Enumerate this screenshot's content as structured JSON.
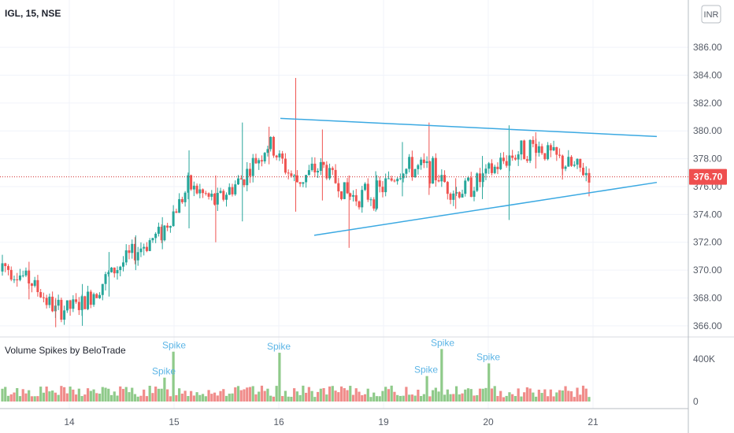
{
  "header": {
    "symbol_label": "IGL, 15, NSE"
  },
  "indicator": {
    "title": "Volume Spikes by BeloTrade",
    "spike_label": "Spike"
  },
  "price_axis": {
    "currency": "INR",
    "ticks": [
      "386.00",
      "384.00",
      "382.00",
      "380.00",
      "378.00",
      "376.00",
      "374.00",
      "372.00",
      "370.00",
      "368.00",
      "366.00"
    ]
  },
  "last_price": {
    "label": "376.70",
    "value": 376.7
  },
  "volume_axis": {
    "ticks": [
      "400K",
      "0"
    ]
  },
  "time_axis": {
    "ticks": [
      "14",
      "15",
      "16",
      "19",
      "20",
      "21"
    ]
  },
  "colors": {
    "up": "#26a69a",
    "down": "#ef5350",
    "up_volume": "#8fca8a",
    "down_volume": "#f08c8a",
    "trendline": "#3ba9e2",
    "price_line": "#d32f2f",
    "spike_text": "#5cb5e6"
  },
  "chart_data": {
    "type": "candlestick",
    "title": "IGL, 15, NSE",
    "xlabel": "",
    "ylabel": "",
    "x_ticks": [
      "14",
      "15",
      "16",
      "19",
      "20",
      "21"
    ],
    "ylim": [
      365.2,
      389.4
    ],
    "candles_approx": [
      {
        "day": "13",
        "open": 369.9,
        "close": 370.9,
        "high": 371.1,
        "low": 369.6
      },
      {
        "day": "13",
        "open": 370.4,
        "close": 368.2,
        "high": 370.6,
        "low": 367.9
      },
      {
        "day": "13",
        "open": 367.8,
        "close": 366.4,
        "high": 368.0,
        "low": 365.9
      },
      {
        "day": "14",
        "open": 366.5,
        "close": 368.5,
        "high": 369.0,
        "low": 366.0
      },
      {
        "day": "14",
        "open": 368.5,
        "close": 370.8,
        "high": 371.3,
        "low": 368.1
      },
      {
        "day": "14",
        "open": 370.8,
        "close": 371.9,
        "high": 372.5,
        "low": 370.0
      },
      {
        "day": "14",
        "open": 372.2,
        "close": 373.4,
        "high": 373.8,
        "low": 371.5
      },
      {
        "day": "15",
        "open": 374.0,
        "close": 378.1,
        "high": 378.6,
        "low": 373.0
      },
      {
        "day": "15",
        "open": 376.5,
        "close": 373.2,
        "high": 376.8,
        "low": 372.0
      },
      {
        "day": "15",
        "open": 373.9,
        "close": 379.3,
        "high": 380.6,
        "low": 373.5
      },
      {
        "day": "15",
        "open": 379.6,
        "close": 378.5,
        "high": 380.3,
        "low": 377.6
      },
      {
        "day": "16",
        "open": 377.0,
        "close": 375.6,
        "high": 383.8,
        "low": 374.2
      },
      {
        "day": "16",
        "open": 378.6,
        "close": 376.4,
        "high": 380.1,
        "low": 375.0
      },
      {
        "day": "16",
        "open": 376.2,
        "close": 374.4,
        "high": 376.8,
        "low": 371.6
      },
      {
        "day": "16",
        "open": 374.6,
        "close": 376.3,
        "high": 377.1,
        "low": 374.2
      },
      {
        "day": "19",
        "open": 376.3,
        "close": 378.2,
        "high": 379.2,
        "low": 375.3
      },
      {
        "day": "19",
        "open": 378.6,
        "close": 376.0,
        "high": 380.6,
        "low": 375.4
      },
      {
        "day": "19",
        "open": 376.2,
        "close": 374.9,
        "high": 376.6,
        "low": 374.4
      },
      {
        "day": "19",
        "open": 375.3,
        "close": 377.8,
        "high": 378.2,
        "low": 375.1
      },
      {
        "day": "20",
        "open": 376.3,
        "close": 380.0,
        "high": 380.4,
        "low": 373.6
      },
      {
        "day": "20",
        "open": 379.8,
        "close": 378.2,
        "high": 379.9,
        "low": 377.3
      },
      {
        "day": "20",
        "open": 378.2,
        "close": 377.2,
        "high": 378.3,
        "low": 376.5
      },
      {
        "day": "20",
        "open": 377.1,
        "close": 376.7,
        "high": 377.3,
        "low": 375.3
      }
    ],
    "trendlines": [
      {
        "name": "upper",
        "from": {
          "day": "16",
          "price": 380.9
        },
        "to": {
          "day": "21",
          "price": 379.6
        }
      },
      {
        "name": "lower",
        "from": {
          "day": "16",
          "price": 372.5
        },
        "to": {
          "day": "21",
          "price": 376.3
        }
      }
    ],
    "last_price": 376.7,
    "volume": {
      "title": "Volume Spikes by BeloTrade",
      "ylim": [
        0,
        400000
      ],
      "spike_days": [
        "15",
        "15",
        "16",
        "19",
        "19",
        "20"
      ]
    }
  }
}
